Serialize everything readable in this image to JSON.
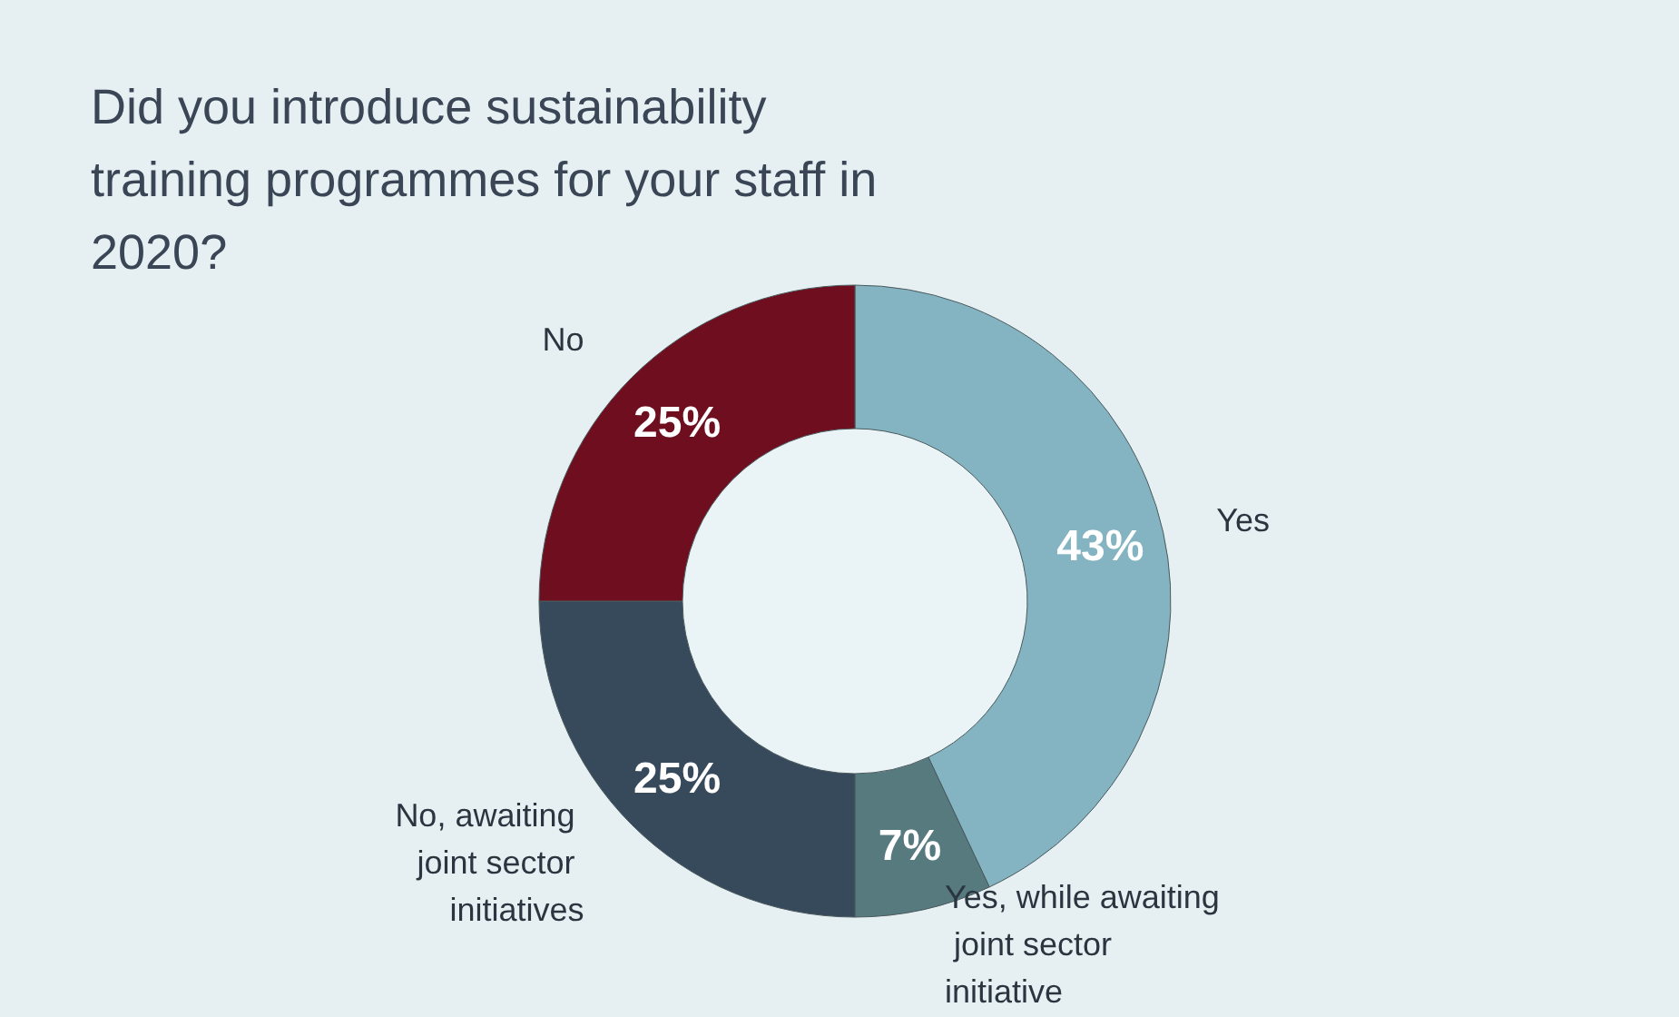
{
  "chart_data": {
    "type": "donut",
    "title": "Did you introduce sustainability training programmes for your staff in 2020?",
    "categories": [
      "Yes",
      "Yes, while awaiting joint sector initiative",
      "No, awaiting joint sector initiatives",
      "No"
    ],
    "values": [
      43,
      7,
      25,
      25
    ],
    "colors": [
      "#84b4c1",
      "#567a7e",
      "#374a5c",
      "#6e0e1e"
    ],
    "value_labels": [
      "43%",
      "7%",
      "25%",
      "25%"
    ],
    "legend": false
  }
}
